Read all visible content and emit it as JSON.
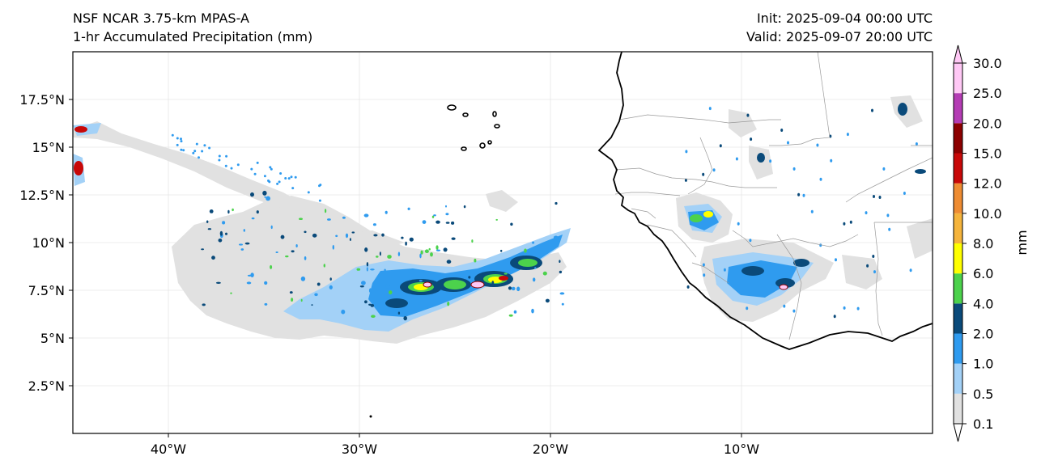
{
  "header": {
    "model": "NSF NCAR 3.75-km MPAS-A",
    "field": "1-hr Accumulated Precipitation (mm)",
    "init": "Init: 2025-09-04 00:00 UTC",
    "valid": "Valid: 2025-09-07 20:00 UTC"
  },
  "map": {
    "lon_range": [
      -45,
      0
    ],
    "lat_range": [
      0,
      20
    ],
    "lat_ticks": [
      {
        "value": 2.5,
        "label": "2.5°N"
      },
      {
        "value": 5,
        "label": "5°N"
      },
      {
        "value": 7.5,
        "label": "7.5°N"
      },
      {
        "value": 10,
        "label": "10°N"
      },
      {
        "value": 12.5,
        "label": "12.5°N"
      },
      {
        "value": 15,
        "label": "15°N"
      },
      {
        "value": 17.5,
        "label": "17.5°N"
      }
    ],
    "lon_ticks": [
      {
        "value": -40,
        "label": "40°W"
      },
      {
        "value": -30,
        "label": "30°W"
      },
      {
        "value": -20,
        "label": "20°W"
      },
      {
        "value": -10,
        "label": "10°W"
      }
    ],
    "colors": {
      "trace": "#e1e1e1",
      "light_blue": "#a3d1f7",
      "blue": "#2f9bef",
      "dark_blue": "#0a4a7a",
      "green": "#4cd24c",
      "yellow": "#ffff00",
      "orange": "#f5a020",
      "red": "#c80808",
      "dark_red": "#8c0000",
      "purple": "#b43cb4",
      "pink": "#ffc8f5",
      "coast": "#000000",
      "border": "#9a9a9a",
      "grid": "#e6e6e6"
    }
  },
  "colorbar": {
    "unit": "mm",
    "levels": [
      "0.1",
      "0.5",
      "1.0",
      "2.0",
      "4.0",
      "6.0",
      "8.0",
      "10.0",
      "12.0",
      "15.0",
      "20.0",
      "25.0",
      "30.0"
    ],
    "bin_colors": [
      "#e1e1e1",
      "#a3d1f7",
      "#2f9bef",
      "#0a4a7a",
      "#4cd24c",
      "#ffff00",
      "#f5b43c",
      "#ee8c32",
      "#c80808",
      "#8c0000",
      "#b43cb4",
      "#ffc8f5"
    ]
  }
}
